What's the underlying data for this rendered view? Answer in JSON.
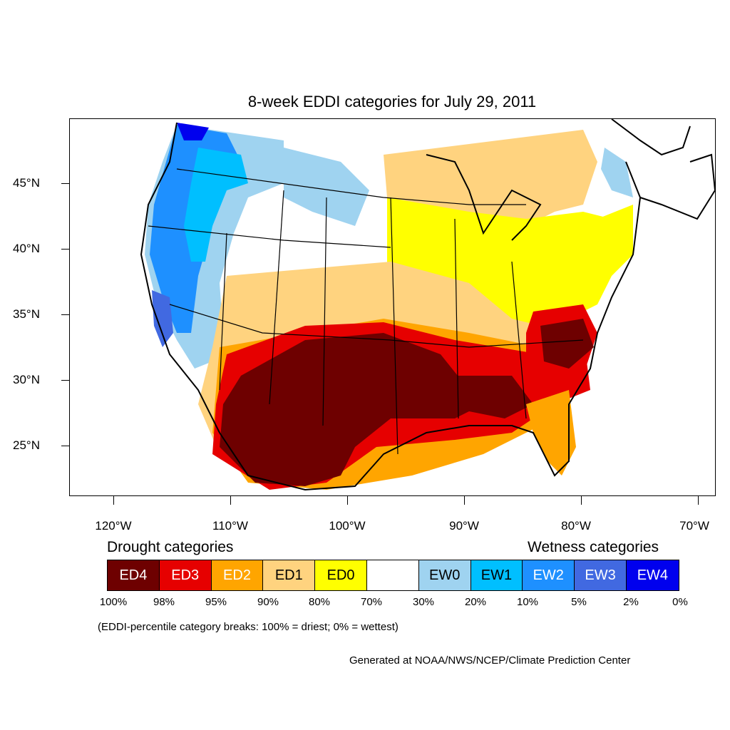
{
  "title": "8-week EDDI categories for July 29, 2011",
  "axes": {
    "lat_labels": [
      "45°N",
      "40°N",
      "35°N",
      "30°N",
      "25°N"
    ],
    "lon_labels": [
      "120°W",
      "110°W",
      "100°W",
      "90°W",
      "80°W",
      "70°W"
    ]
  },
  "legend": {
    "drought_heading": "Drought categories",
    "wetness_heading": "Wetness categories",
    "categories": [
      {
        "label": "ED4",
        "color": "#6e0000",
        "text_color": "#ffffff"
      },
      {
        "label": "ED3",
        "color": "#e60000",
        "text_color": "#ffffff"
      },
      {
        "label": "ED2",
        "color": "#ffa500",
        "text_color": "#ffffff"
      },
      {
        "label": "ED1",
        "color": "#ffd37f",
        "text_color": "#000000"
      },
      {
        "label": "ED0",
        "color": "#ffff00",
        "text_color": "#000000"
      },
      {
        "label": "",
        "color": "#ffffff",
        "text_color": "#000000"
      },
      {
        "label": "EW0",
        "color": "#9fd3f0",
        "text_color": "#000000"
      },
      {
        "label": "EW1",
        "color": "#00bfff",
        "text_color": "#000000"
      },
      {
        "label": "EW2",
        "color": "#1e90ff",
        "text_color": "#ffffff"
      },
      {
        "label": "EW3",
        "color": "#4169e1",
        "text_color": "#ffffff"
      },
      {
        "label": "EW4",
        "color": "#0000ee",
        "text_color": "#ffffff"
      }
    ],
    "percent_breaks": [
      "100%",
      "98%",
      "95%",
      "90%",
      "80%",
      "70%",
      "30%",
      "20%",
      "10%",
      "5%",
      "2%",
      "0%"
    ]
  },
  "note": "(EDDI-percentile category breaks: 100% = driest; 0% = wettest)",
  "credit": "Generated at NOAA/NWS/NCEP/Climate Prediction Center"
}
